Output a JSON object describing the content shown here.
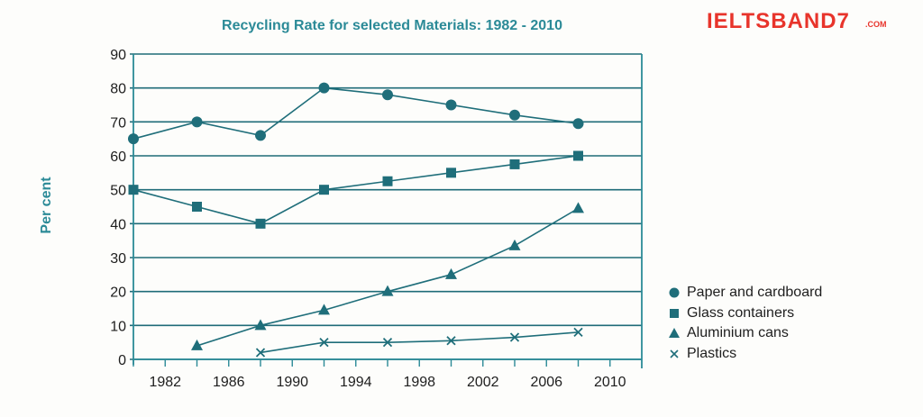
{
  "brand": {
    "name": "IELTSBAND7",
    "suffix": ".COM"
  },
  "chart_data": {
    "type": "line",
    "title": "Recycling Rate for selected Materials: 1982 - 2010",
    "xlabel": "",
    "ylabel": "Per cent",
    "x_ticks": [
      1982,
      1986,
      1990,
      1994,
      1998,
      2002,
      2006,
      2010
    ],
    "xlim": [
      1980,
      2012
    ],
    "ylim": [
      0,
      90
    ],
    "y_ticks": [
      0,
      10,
      20,
      30,
      40,
      50,
      60,
      70,
      80,
      90
    ],
    "grid": "horizontal",
    "legend_position": "bottom-right",
    "series": [
      {
        "name": "Paper and cardboard",
        "marker": "circle",
        "x": [
          1980,
          1984,
          1988,
          1992,
          1996,
          2000,
          2004,
          2008
        ],
        "values": [
          65,
          70,
          66,
          80,
          78,
          75,
          72,
          69.5
        ]
      },
      {
        "name": "Glass containers",
        "marker": "square",
        "x": [
          1980,
          1984,
          1988,
          1992,
          1996,
          2000,
          2004,
          2008
        ],
        "values": [
          50,
          45,
          40,
          50,
          52.5,
          55,
          57.5,
          60
        ]
      },
      {
        "name": "Aluminium cans",
        "marker": "triangle",
        "x": [
          1984,
          1988,
          1992,
          1996,
          2000,
          2004,
          2008
        ],
        "values": [
          4,
          10,
          14.5,
          20,
          25,
          33.5,
          44.5
        ]
      },
      {
        "name": "Plastics",
        "marker": "cross",
        "x": [
          1988,
          1992,
          1996,
          2000,
          2004,
          2008
        ],
        "values": [
          2,
          5,
          5,
          5.5,
          6.5,
          8
        ]
      }
    ]
  }
}
